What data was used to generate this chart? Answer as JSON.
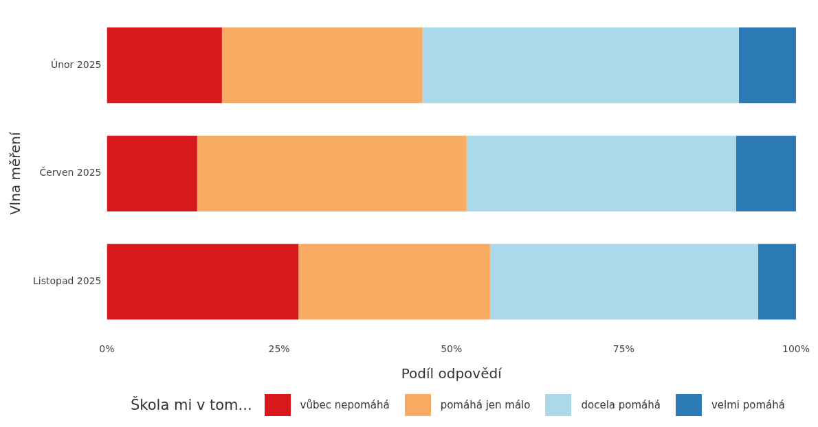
{
  "chart_data": {
    "type": "bar",
    "orientation": "horizontal",
    "stacked": true,
    "xlabel": "Podíl odpovědí",
    "ylabel": "Vlna měření",
    "legend_title": "Škola mi v tom...",
    "legend": "bottom",
    "grid": false,
    "categories": [
      "Únor 2025",
      "Červen 2025",
      "Listopad 2025"
    ],
    "xlim": [
      0,
      100
    ],
    "xticks": [
      {
        "value": 0,
        "label": "0%"
      },
      {
        "value": 25,
        "label": "25%"
      },
      {
        "value": 50,
        "label": "50%"
      },
      {
        "value": 75,
        "label": "75%"
      },
      {
        "value": 100,
        "label": "100%"
      }
    ],
    "series": [
      {
        "name": "vůbec nepomáhá",
        "color": "#d7191c",
        "values": [
          16.7,
          13.1,
          27.8
        ]
      },
      {
        "name": "pomáhá jen málo",
        "color": "#f8ab62",
        "values": [
          29.1,
          39.1,
          27.8
        ]
      },
      {
        "name": "docela pomáhá",
        "color": "#abd9e9",
        "values": [
          45.9,
          39.1,
          38.9
        ]
      },
      {
        "name": "velmi pomáhá",
        "color": "#2c7bb6",
        "values": [
          8.3,
          8.7,
          5.5
        ]
      }
    ]
  }
}
